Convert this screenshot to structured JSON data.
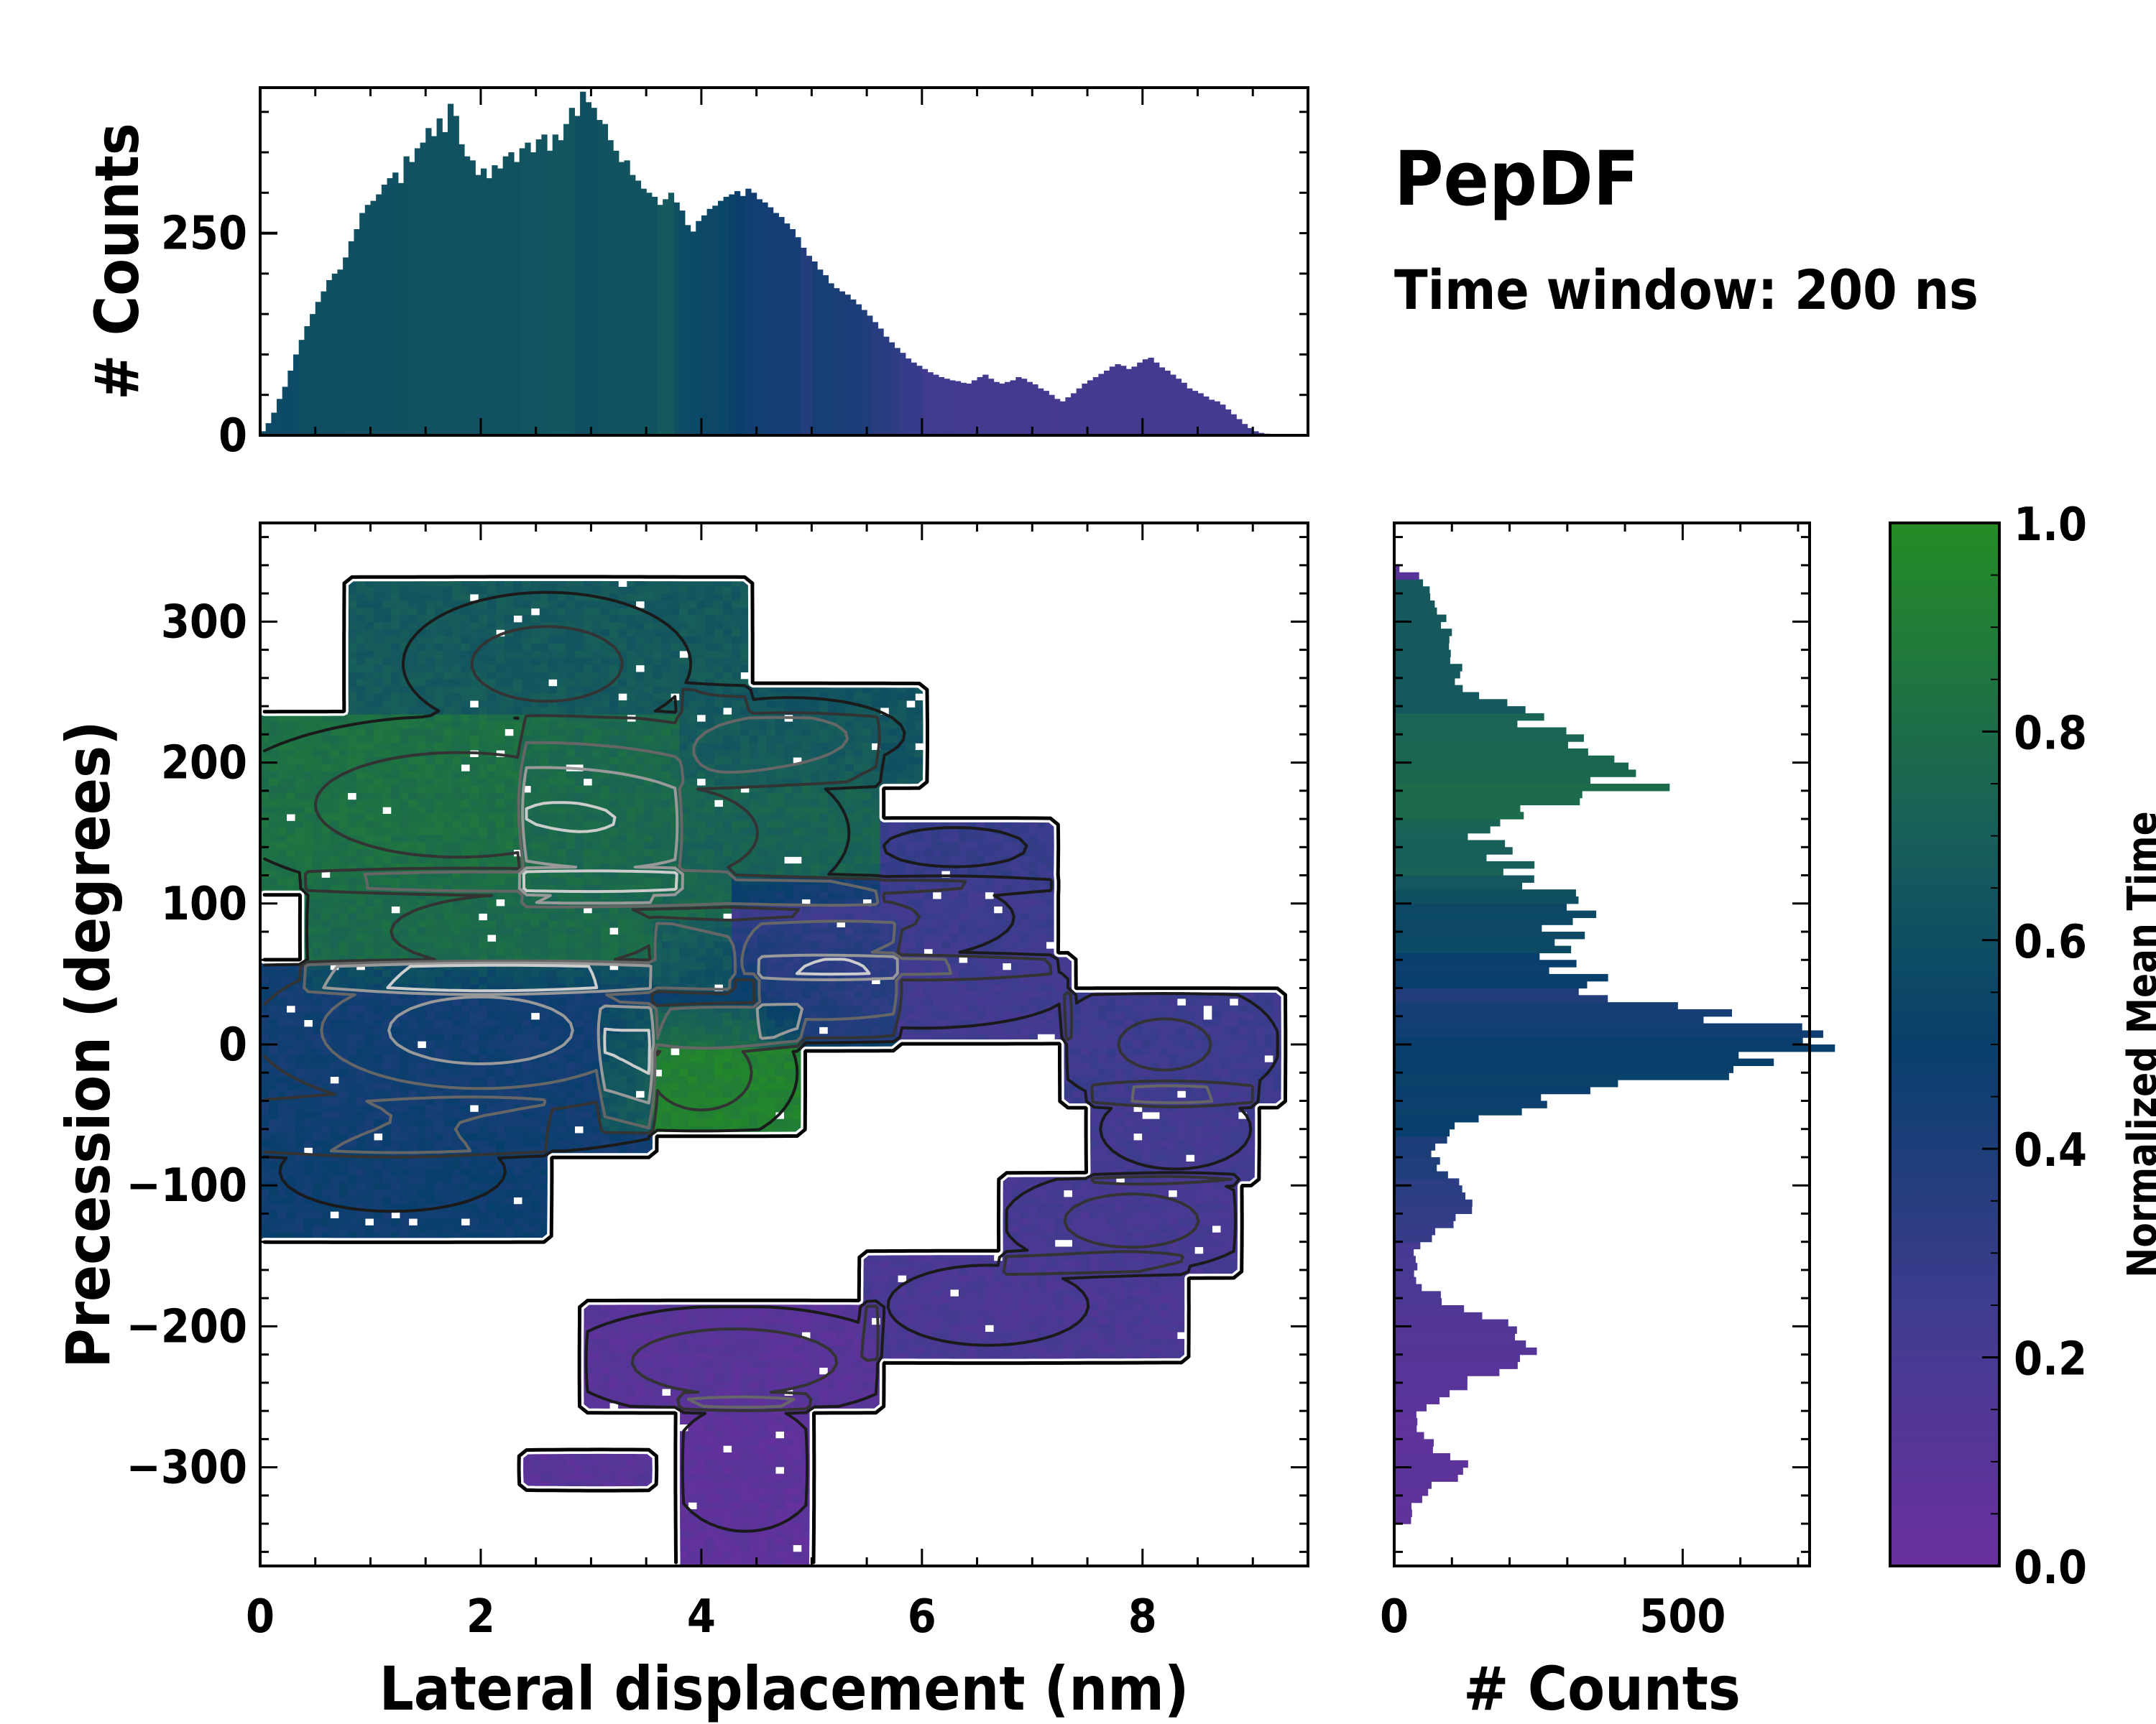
{
  "figure": {
    "title": "PepDF",
    "subtitle": "Time window: 200 ns"
  },
  "chart_data": [
    {
      "id": "top_histogram",
      "type": "bar",
      "xlabel": "",
      "ylabel": "# Counts",
      "xlim": [
        0,
        9.5
      ],
      "ylim": [
        0,
        430
      ],
      "yticks": [
        0,
        250
      ],
      "bin_start": 0.05,
      "bin_width": 0.05,
      "values": [
        5,
        15,
        28,
        45,
        60,
        80,
        100,
        118,
        135,
        150,
        165,
        178,
        192,
        200,
        205,
        220,
        240,
        255,
        275,
        285,
        290,
        298,
        310,
        318,
        325,
        312,
        345,
        338,
        355,
        362,
        380,
        370,
        392,
        375,
        410,
        395,
        360,
        345,
        340,
        322,
        330,
        318,
        334,
        330,
        345,
        350,
        338,
        355,
        362,
        350,
        366,
        372,
        352,
        372,
        365,
        385,
        405,
        395,
        425,
        412,
        405,
        390,
        385,
        365,
        352,
        338,
        340,
        322,
        315,
        305,
        300,
        295,
        285,
        292,
        300,
        288,
        278,
        260,
        252,
        265,
        272,
        280,
        284,
        290,
        295,
        298,
        302,
        296,
        305,
        300,
        292,
        288,
        282,
        275,
        270,
        262,
        255,
        245,
        232,
        222,
        215,
        205,
        198,
        188,
        182,
        178,
        174,
        168,
        162,
        155,
        148,
        140,
        132,
        122,
        115,
        108,
        102,
        95,
        90,
        86,
        82,
        78,
        75,
        72,
        70,
        68,
        67,
        65,
        64,
        68,
        72,
        75,
        70,
        66,
        64,
        66,
        68,
        72,
        70,
        66,
        63,
        58,
        55,
        50,
        45,
        42,
        47,
        52,
        58,
        64,
        68,
        72,
        76,
        80,
        85,
        88,
        86,
        82,
        85,
        90,
        94,
        96,
        90,
        84,
        80,
        75,
        70,
        65,
        58,
        55,
        52,
        48,
        44,
        42,
        38,
        32,
        26,
        20,
        14,
        9,
        5,
        3,
        2,
        1,
        0,
        0
      ]
    },
    {
      "id": "main_density",
      "type": "heatmap",
      "xlabel": "Lateral displacement (nm)",
      "ylabel": "Precession (degrees)",
      "xlim": [
        0,
        9.5
      ],
      "ylim": [
        -370,
        370
      ],
      "xticks": [
        0,
        2,
        4,
        6,
        8
      ],
      "xticklabels": [
        "0",
        "2",
        "4",
        "6",
        "8"
      ],
      "yticks": [
        300,
        200,
        100,
        0,
        -100,
        -200,
        -300
      ],
      "yticklabels": [
        "300",
        "200",
        "100",
        "0",
        "−100",
        "−200",
        "−300"
      ],
      "color_meaning": "Normalized Mean Time",
      "clusters": [
        {
          "cx": 2.6,
          "cy": 270,
          "sx": 0.9,
          "sy": 35,
          "w": 1.0,
          "t": 0.67,
          "xmin": 0.8,
          "xmax": 4.4,
          "ymin": 235,
          "ymax": 330
        },
        {
          "cx": 4.8,
          "cy": 220,
          "sx": 0.8,
          "sy": 20,
          "w": 0.9,
          "t": 0.64,
          "xmin": 3.8,
          "xmax": 6.0,
          "ymin": 185,
          "ymax": 255
        },
        {
          "cx": 1.8,
          "cy": 170,
          "sx": 1.4,
          "sy": 40,
          "w": 1.1,
          "t": 0.82,
          "xmin": 0.0,
          "xmax": 3.8,
          "ymin": 110,
          "ymax": 235
        },
        {
          "cx": 3.6,
          "cy": 150,
          "sx": 1.2,
          "sy": 45,
          "w": 1.0,
          "t": 0.73,
          "xmin": 2.4,
          "xmax": 5.6,
          "ymin": 100,
          "ymax": 235
        },
        {
          "cx": 2.4,
          "cy": 80,
          "sx": 1.6,
          "sy": 35,
          "w": 1.0,
          "t": 0.78,
          "xmin": 0.4,
          "xmax": 4.3,
          "ymin": 40,
          "ymax": 125
        },
        {
          "cx": 2.0,
          "cy": 10,
          "sx": 1.4,
          "sy": 40,
          "w": 1.6,
          "t": 0.45,
          "xmin": 0.0,
          "xmax": 3.6,
          "ymin": -80,
          "ymax": 60
        },
        {
          "cx": 1.2,
          "cy": -90,
          "sx": 0.9,
          "sy": 25,
          "w": 0.8,
          "t": 0.47,
          "xmin": 0.0,
          "xmax": 2.6,
          "ymin": -140,
          "ymax": -40
        },
        {
          "cx": 4.0,
          "cy": -20,
          "sx": 0.6,
          "sy": 35,
          "w": 1.0,
          "t": 0.93,
          "xmin": 3.1,
          "xmax": 4.9,
          "ymin": -65,
          "ymax": 30
        },
        {
          "cx": 4.6,
          "cy": 40,
          "sx": 1.0,
          "sy": 30,
          "w": 0.8,
          "t": 0.5,
          "xmin": 3.6,
          "xmax": 5.8,
          "ymin": 0,
          "ymax": 90
        },
        {
          "cx": 5.4,
          "cy": 90,
          "sx": 1.1,
          "sy": 25,
          "w": 0.9,
          "t": 0.25,
          "xmin": 4.3,
          "xmax": 7.2,
          "ymin": 50,
          "ymax": 120
        },
        {
          "cx": 6.3,
          "cy": 140,
          "sx": 0.7,
          "sy": 15,
          "w": 0.7,
          "t": 0.28,
          "xmin": 5.6,
          "xmax": 7.2,
          "ymin": 110,
          "ymax": 160
        },
        {
          "cx": 6.0,
          "cy": 40,
          "sx": 1.2,
          "sy": 25,
          "w": 0.8,
          "t": 0.23,
          "xmin": 4.5,
          "xmax": 7.4,
          "ymin": 5,
          "ymax": 65
        },
        {
          "cx": 8.2,
          "cy": 0,
          "sx": 0.8,
          "sy": 35,
          "w": 0.9,
          "t": 0.25,
          "xmin": 7.3,
          "xmax": 9.3,
          "ymin": -45,
          "ymax": 40
        },
        {
          "cx": 8.3,
          "cy": -60,
          "sx": 0.6,
          "sy": 25,
          "w": 0.8,
          "t": 0.22,
          "xmin": 7.5,
          "xmax": 9.0,
          "ymin": -100,
          "ymax": -30
        },
        {
          "cx": 7.9,
          "cy": -125,
          "sx": 0.8,
          "sy": 25,
          "w": 1.0,
          "t": 0.2,
          "xmin": 6.7,
          "xmax": 8.9,
          "ymin": -165,
          "ymax": -95
        },
        {
          "cx": 6.6,
          "cy": -185,
          "sx": 0.8,
          "sy": 25,
          "w": 0.8,
          "t": 0.18,
          "xmin": 5.5,
          "xmax": 8.4,
          "ymin": -225,
          "ymax": -150
        },
        {
          "cx": 4.3,
          "cy": -225,
          "sx": 1.0,
          "sy": 25,
          "w": 1.1,
          "t": 0.1,
          "xmin": 2.9,
          "xmax": 5.6,
          "ymin": -260,
          "ymax": -185
        },
        {
          "cx": 4.4,
          "cy": -300,
          "sx": 0.6,
          "sy": 40,
          "w": 0.8,
          "t": 0.07,
          "xmin": 3.8,
          "xmax": 5.0,
          "ymin": -370,
          "ymax": -250
        },
        {
          "cx": 3.1,
          "cy": -300,
          "sx": 0.5,
          "sy": 10,
          "w": 0.5,
          "t": 0.1,
          "xmin": 2.4,
          "xmax": 3.6,
          "ymin": -315,
          "ymax": -290
        }
      ]
    },
    {
      "id": "right_histogram",
      "type": "bar",
      "orientation": "horizontal",
      "xlabel": "# Counts",
      "ylabel": "",
      "xlim": [
        0,
        720
      ],
      "ylim": [
        -370,
        370
      ],
      "xticks": [
        0,
        500
      ],
      "xticklabels": [
        "0",
        "500"
      ],
      "bin_width_deg": 5,
      "peaks": [
        {
          "center": 285,
          "width": 30,
          "amp": 60
        },
        {
          "center": 205,
          "width": 28,
          "amp": 300
        },
        {
          "center": 180,
          "width": 10,
          "amp": 150
        },
        {
          "center": 95,
          "width": 35,
          "amp": 280
        },
        {
          "center": 0,
          "width": 30,
          "amp": 620
        },
        {
          "center": -110,
          "width": 18,
          "amp": 110
        },
        {
          "center": -215,
          "width": 22,
          "amp": 200
        },
        {
          "center": -300,
          "width": 12,
          "amp": 90
        }
      ],
      "baseline": 25
    },
    {
      "id": "colorbar",
      "type": "colorbar",
      "label": "Normalized Mean Time",
      "range": [
        0.0,
        1.0
      ],
      "ticks": [
        0.0,
        0.2,
        0.4,
        0.6,
        0.8,
        1.0
      ],
      "ticklabels": [
        "0.0",
        "0.2",
        "0.4",
        "0.6",
        "0.8",
        "1.0"
      ],
      "colormap_stops": [
        {
          "t": 0.0,
          "color": "#6a2f9e"
        },
        {
          "t": 0.25,
          "color": "#3e3c8e"
        },
        {
          "t": 0.5,
          "color": "#073f6b"
        },
        {
          "t": 0.7,
          "color": "#185e5a"
        },
        {
          "t": 1.0,
          "color": "#258c25"
        }
      ]
    }
  ]
}
